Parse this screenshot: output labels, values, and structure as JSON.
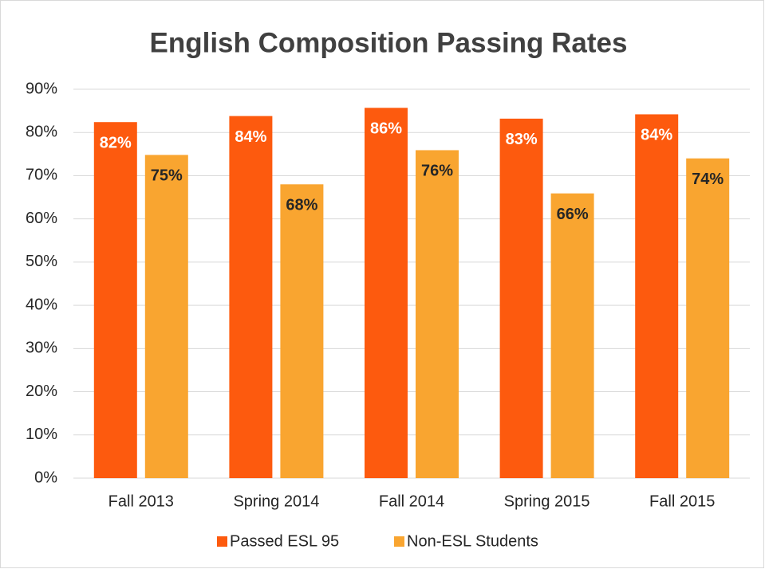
{
  "chart_data": {
    "type": "bar",
    "title": "English Composition Passing Rates",
    "categories": [
      "Fall 2013",
      "Spring 2014",
      "Fall 2014",
      "Spring 2015",
      "Fall 2015"
    ],
    "series": [
      {
        "name": "Passed ESL 95",
        "color": "#fd5a0e",
        "values": [
          82.4,
          83.8,
          85.7,
          83.2,
          84.2
        ],
        "value_labels": [
          "82%",
          "84%",
          "86%",
          "83%",
          "84%"
        ]
      },
      {
        "name": "Non-ESL Students",
        "color": "#f9a530",
        "values": [
          74.8,
          68.0,
          75.9,
          65.9,
          74.0
        ],
        "value_labels": [
          "75%",
          "68%",
          "76%",
          "66%",
          "74%"
        ]
      }
    ],
    "ylim": [
      0,
      90
    ],
    "yticks": [
      {
        "value": 0,
        "label": "0%"
      },
      {
        "value": 10,
        "label": "10%"
      },
      {
        "value": 20,
        "label": "20%"
      },
      {
        "value": 30,
        "label": "30%"
      },
      {
        "value": 40,
        "label": "40%"
      },
      {
        "value": 50,
        "label": "50%"
      },
      {
        "value": 60,
        "label": "60%"
      },
      {
        "value": 70,
        "label": "70%"
      },
      {
        "value": 80,
        "label": "80%"
      },
      {
        "value": 90,
        "label": "90%"
      }
    ],
    "grid": true,
    "legend": "bottom"
  }
}
